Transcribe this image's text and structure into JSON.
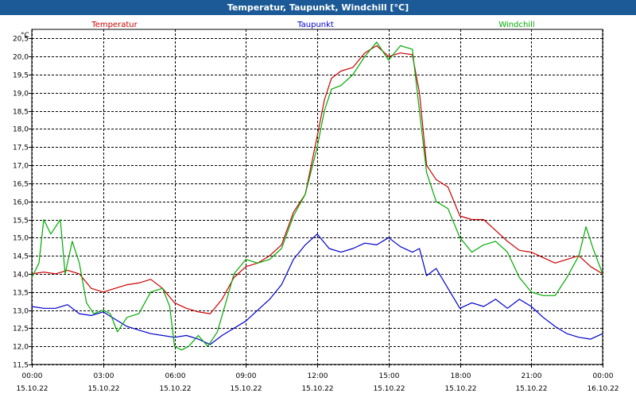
{
  "chart_data": {
    "type": "line",
    "title": "Temperatur, Taupunkt, Windchill [°C]",
    "ylabel": "°C",
    "ylim": [
      11.5,
      20.75
    ],
    "yticks": [
      "11,5",
      "12,0",
      "12,5",
      "13,0",
      "13,5",
      "14,0",
      "14,5",
      "15,0",
      "15,5",
      "16,0",
      "16,5",
      "17,0",
      "17,5",
      "18,0",
      "18,5",
      "19,0",
      "19,5",
      "20,0",
      "20,5"
    ],
    "xlim": [
      0,
      24
    ],
    "xticks": [
      {
        "time": "00:00",
        "date": "15.10.22"
      },
      {
        "time": "03:00",
        "date": "15.10.22"
      },
      {
        "time": "06:00",
        "date": "15.10.22"
      },
      {
        "time": "09:00",
        "date": "15.10.22"
      },
      {
        "time": "12:00",
        "date": "15.10.22"
      },
      {
        "time": "15:00",
        "date": "15.10.22"
      },
      {
        "time": "18:00",
        "date": "15.10.22"
      },
      {
        "time": "21:00",
        "date": "15.10.22"
      },
      {
        "time": "00:00",
        "date": "16.10.22"
      }
    ],
    "series": [
      {
        "name": "Temperatur",
        "color": "#cc0000",
        "points": [
          [
            0,
            14.0
          ],
          [
            0.5,
            14.05
          ],
          [
            1.0,
            14.0
          ],
          [
            1.5,
            14.1
          ],
          [
            2.0,
            14.0
          ],
          [
            2.5,
            13.6
          ],
          [
            3.0,
            13.5
          ],
          [
            3.5,
            13.6
          ],
          [
            4.0,
            13.7
          ],
          [
            4.5,
            13.75
          ],
          [
            5.0,
            13.85
          ],
          [
            5.5,
            13.6
          ],
          [
            6.0,
            13.2
          ],
          [
            6.5,
            13.05
          ],
          [
            7.0,
            12.95
          ],
          [
            7.5,
            12.9
          ],
          [
            8.0,
            13.3
          ],
          [
            8.5,
            13.9
          ],
          [
            9.0,
            14.2
          ],
          [
            9.5,
            14.3
          ],
          [
            10.0,
            14.5
          ],
          [
            10.5,
            14.8
          ],
          [
            11.0,
            15.7
          ],
          [
            11.5,
            16.2
          ],
          [
            12.0,
            17.8
          ],
          [
            12.3,
            18.8
          ],
          [
            12.6,
            19.4
          ],
          [
            13.0,
            19.6
          ],
          [
            13.5,
            19.7
          ],
          [
            14.0,
            20.1
          ],
          [
            14.5,
            20.3
          ],
          [
            15.0,
            20.0
          ],
          [
            15.5,
            20.1
          ],
          [
            16.0,
            20.05
          ],
          [
            16.3,
            19.0
          ],
          [
            16.6,
            17.0
          ],
          [
            17.0,
            16.6
          ],
          [
            17.5,
            16.4
          ],
          [
            18.0,
            15.6
          ],
          [
            18.5,
            15.5
          ],
          [
            19.0,
            15.5
          ],
          [
            19.5,
            15.2
          ],
          [
            20.0,
            14.9
          ],
          [
            20.5,
            14.65
          ],
          [
            21.0,
            14.6
          ],
          [
            21.5,
            14.45
          ],
          [
            22.0,
            14.3
          ],
          [
            22.5,
            14.4
          ],
          [
            23.0,
            14.5
          ],
          [
            23.5,
            14.2
          ],
          [
            24.0,
            14.0
          ]
        ]
      },
      {
        "name": "Taupunkt",
        "color": "#0000cc",
        "points": [
          [
            0,
            13.1
          ],
          [
            0.5,
            13.05
          ],
          [
            1.0,
            13.05
          ],
          [
            1.5,
            13.15
          ],
          [
            2.0,
            12.9
          ],
          [
            2.5,
            12.85
          ],
          [
            3.0,
            12.95
          ],
          [
            3.5,
            12.75
          ],
          [
            4.0,
            12.55
          ],
          [
            4.5,
            12.45
          ],
          [
            5.0,
            12.35
          ],
          [
            5.5,
            12.3
          ],
          [
            6.0,
            12.25
          ],
          [
            6.5,
            12.3
          ],
          [
            7.0,
            12.2
          ],
          [
            7.5,
            12.05
          ],
          [
            8.0,
            12.3
          ],
          [
            8.5,
            12.5
          ],
          [
            9.0,
            12.7
          ],
          [
            9.5,
            13.0
          ],
          [
            10.0,
            13.3
          ],
          [
            10.5,
            13.7
          ],
          [
            11.0,
            14.4
          ],
          [
            11.5,
            14.8
          ],
          [
            12.0,
            15.1
          ],
          [
            12.5,
            14.7
          ],
          [
            13.0,
            14.6
          ],
          [
            13.5,
            14.7
          ],
          [
            14.0,
            14.85
          ],
          [
            14.5,
            14.8
          ],
          [
            15.0,
            15.0
          ],
          [
            15.5,
            14.75
          ],
          [
            16.0,
            14.6
          ],
          [
            16.3,
            14.7
          ],
          [
            16.6,
            13.95
          ],
          [
            17.0,
            14.15
          ],
          [
            17.5,
            13.6
          ],
          [
            18.0,
            13.05
          ],
          [
            18.5,
            13.2
          ],
          [
            19.0,
            13.1
          ],
          [
            19.5,
            13.3
          ],
          [
            20.0,
            13.05
          ],
          [
            20.5,
            13.3
          ],
          [
            21.0,
            13.1
          ],
          [
            21.5,
            12.8
          ],
          [
            22.0,
            12.55
          ],
          [
            22.5,
            12.35
          ],
          [
            23.0,
            12.25
          ],
          [
            23.5,
            12.2
          ],
          [
            24.0,
            12.35
          ]
        ]
      },
      {
        "name": "Windchill",
        "color": "#00aa00",
        "points": [
          [
            0,
            13.9
          ],
          [
            0.3,
            14.3
          ],
          [
            0.5,
            15.5
          ],
          [
            0.8,
            15.1
          ],
          [
            1.2,
            15.5
          ],
          [
            1.4,
            14.0
          ],
          [
            1.7,
            14.9
          ],
          [
            2.0,
            14.3
          ],
          [
            2.3,
            13.2
          ],
          [
            2.6,
            12.9
          ],
          [
            3.0,
            13.0
          ],
          [
            3.3,
            12.9
          ],
          [
            3.6,
            12.4
          ],
          [
            4.0,
            12.8
          ],
          [
            4.5,
            12.9
          ],
          [
            5.0,
            13.5
          ],
          [
            5.5,
            13.6
          ],
          [
            5.8,
            13.1
          ],
          [
            6.0,
            12.0
          ],
          [
            6.3,
            11.9
          ],
          [
            6.6,
            12.0
          ],
          [
            7.0,
            12.3
          ],
          [
            7.4,
            12.0
          ],
          [
            7.8,
            12.4
          ],
          [
            8.2,
            13.3
          ],
          [
            8.5,
            14.0
          ],
          [
            9.0,
            14.4
          ],
          [
            9.5,
            14.3
          ],
          [
            10.0,
            14.4
          ],
          [
            10.5,
            14.7
          ],
          [
            11.0,
            15.6
          ],
          [
            11.5,
            16.2
          ],
          [
            12.0,
            17.5
          ],
          [
            12.3,
            18.5
          ],
          [
            12.6,
            19.1
          ],
          [
            13.0,
            19.2
          ],
          [
            13.5,
            19.5
          ],
          [
            14.0,
            20.0
          ],
          [
            14.5,
            20.4
          ],
          [
            15.0,
            19.9
          ],
          [
            15.5,
            20.3
          ],
          [
            16.0,
            20.2
          ],
          [
            16.3,
            18.5
          ],
          [
            16.6,
            16.8
          ],
          [
            17.0,
            16.0
          ],
          [
            17.5,
            15.8
          ],
          [
            18.0,
            15.0
          ],
          [
            18.5,
            14.6
          ],
          [
            19.0,
            14.8
          ],
          [
            19.5,
            14.9
          ],
          [
            20.0,
            14.6
          ],
          [
            20.5,
            13.9
          ],
          [
            21.0,
            13.5
          ],
          [
            21.5,
            13.4
          ],
          [
            22.0,
            13.4
          ],
          [
            22.5,
            13.9
          ],
          [
            23.0,
            14.5
          ],
          [
            23.3,
            15.3
          ],
          [
            23.6,
            14.7
          ],
          [
            24.0,
            14.0
          ]
        ]
      }
    ]
  }
}
